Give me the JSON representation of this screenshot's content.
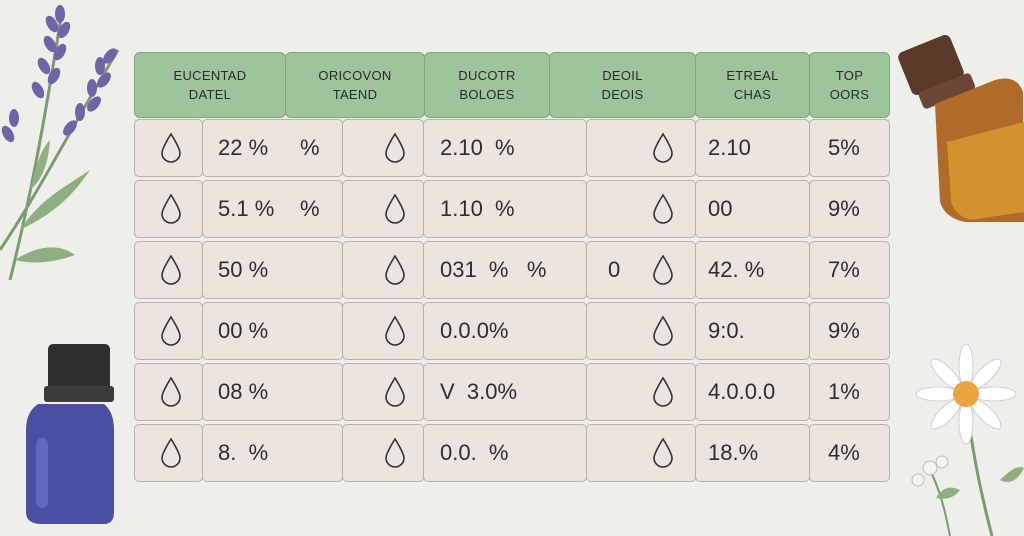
{
  "headers": [
    {
      "line1": "EUCENTAD",
      "line2": "DATEL"
    },
    {
      "line1": "ORICOVON",
      "line2": "TAEND"
    },
    {
      "line1": "DUCOTR",
      "line2": "BOLOES"
    },
    {
      "line1": "DEOIL",
      "line2": "DEOIS"
    },
    {
      "line1": "ETREAL",
      "line2": "CHAS"
    },
    {
      "line1": "TOP",
      "line2": "OORS"
    }
  ],
  "rows": [
    {
      "c1": "22 %",
      "c1b": "%",
      "c3": "2.10  %",
      "c4": "",
      "c5": "2.10",
      "c6": "5%"
    },
    {
      "c1": "5.1 %",
      "c1b": "%",
      "c3": "1.10  %",
      "c4": "",
      "c5": "00",
      "c6": "9%"
    },
    {
      "c1": "50 %",
      "c1b": "",
      "c3": "031  %   %",
      "c4": "0",
      "c5": "42. %",
      "c6": "7%"
    },
    {
      "c1": "00 %",
      "c1b": "",
      "c3": "0.0.0%",
      "c4": "",
      "c5": "9:0.",
      "c6": "9%"
    },
    {
      "c1": "08 %",
      "c1b": "",
      "c3": "V  3.0%",
      "c4": "",
      "c5": "4.0.0.0",
      "c6": "1%"
    },
    {
      "c1": "8.  %",
      "c1b": "",
      "c3": "0.0.  %",
      "c4": "",
      "c5": "18.%",
      "c6": "4%"
    }
  ],
  "icons": {
    "drop": "droplet-icon",
    "lavender": "lavender-sprig-icon",
    "amber_bottle": "amber-bottle-icon",
    "blue_bottle": "blue-bottle-icon",
    "chamomile": "chamomile-flower-icon"
  },
  "colors": {
    "header_bg": "#9dc49a",
    "cell_bg": "#ece4de",
    "background": "#eeeeea"
  }
}
